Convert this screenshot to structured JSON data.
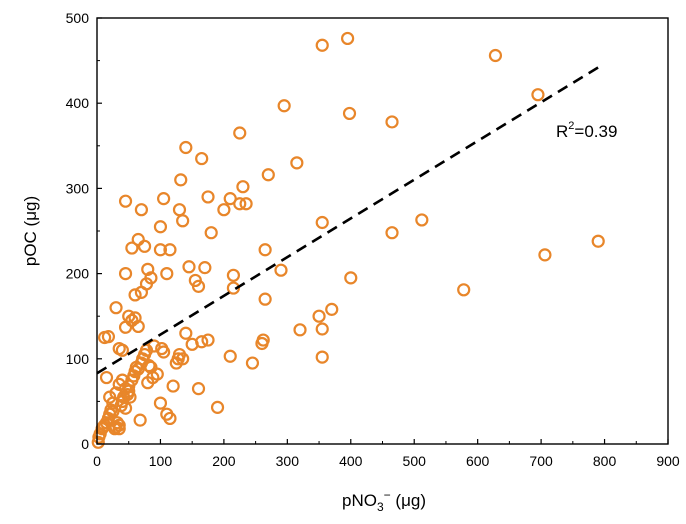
{
  "chart_data": {
    "type": "scatter",
    "title": "",
    "xlabel": "pNO3⁻ (μg)",
    "ylabel": "pOC (μg)",
    "xlim": [
      0,
      900
    ],
    "ylim": [
      0,
      500
    ],
    "xticks": [
      "0",
      "100",
      "200",
      "300",
      "400",
      "500",
      "600",
      "700",
      "800",
      "900"
    ],
    "yticks": [
      "0",
      "100",
      "200",
      "300",
      "400",
      "500"
    ],
    "grid": false,
    "marker_color": "#e8862a",
    "fit_line": {
      "x": [
        0,
        790
      ],
      "y": [
        83,
        442
      ],
      "style": "dashed",
      "color": "#000000"
    },
    "annotation": "R2=0.39",
    "points": [
      [
        2,
        2
      ],
      [
        3,
        8
      ],
      [
        5,
        12
      ],
      [
        8,
        18
      ],
      [
        10,
        20
      ],
      [
        12,
        22
      ],
      [
        15,
        25
      ],
      [
        18,
        30
      ],
      [
        20,
        35
      ],
      [
        22,
        40
      ],
      [
        25,
        38
      ],
      [
        28,
        18
      ],
      [
        30,
        20
      ],
      [
        32,
        25
      ],
      [
        35,
        18
      ],
      [
        35,
        22
      ],
      [
        38,
        45
      ],
      [
        40,
        50
      ],
      [
        42,
        55
      ],
      [
        45,
        42
      ],
      [
        48,
        58
      ],
      [
        50,
        62
      ],
      [
        52,
        55
      ],
      [
        55,
        75
      ],
      [
        58,
        80
      ],
      [
        60,
        85
      ],
      [
        62,
        90
      ],
      [
        65,
        88
      ],
      [
        68,
        28
      ],
      [
        70,
        95
      ],
      [
        72,
        100
      ],
      [
        75,
        105
      ],
      [
        78,
        110
      ],
      [
        80,
        72
      ],
      [
        82,
        92
      ],
      [
        85,
        90
      ],
      [
        88,
        78
      ],
      [
        90,
        115
      ],
      [
        95,
        82
      ],
      [
        100,
        48
      ],
      [
        102,
        112
      ],
      [
        105,
        108
      ],
      [
        110,
        35
      ],
      [
        115,
        30
      ],
      [
        120,
        68
      ],
      [
        125,
        95
      ],
      [
        128,
        100
      ],
      [
        130,
        105
      ],
      [
        135,
        100
      ],
      [
        140,
        130
      ],
      [
        15,
        78
      ],
      [
        20,
        55
      ],
      [
        25,
        48
      ],
      [
        30,
        60
      ],
      [
        35,
        70
      ],
      [
        40,
        75
      ],
      [
        45,
        65
      ],
      [
        50,
        68
      ],
      [
        12,
        125
      ],
      [
        18,
        126
      ],
      [
        30,
        160
      ],
      [
        35,
        112
      ],
      [
        40,
        110
      ],
      [
        45,
        137
      ],
      [
        50,
        150
      ],
      [
        55,
        145
      ],
      [
        60,
        148
      ],
      [
        65,
        138
      ],
      [
        60,
        175
      ],
      [
        70,
        178
      ],
      [
        45,
        200
      ],
      [
        55,
        230
      ],
      [
        65,
        240
      ],
      [
        75,
        232
      ],
      [
        80,
        205
      ],
      [
        78,
        188
      ],
      [
        85,
        195
      ],
      [
        70,
        275
      ],
      [
        45,
        285
      ],
      [
        100,
        255
      ],
      [
        105,
        288
      ],
      [
        110,
        200
      ],
      [
        115,
        228
      ],
      [
        100,
        228
      ],
      [
        130,
        275
      ],
      [
        132,
        310
      ],
      [
        135,
        262
      ],
      [
        140,
        348
      ],
      [
        145,
        208
      ],
      [
        155,
        192
      ],
      [
        160,
        185
      ],
      [
        165,
        335
      ],
      [
        170,
        207
      ],
      [
        175,
        290
      ],
      [
        180,
        248
      ],
      [
        200,
        275
      ],
      [
        210,
        288
      ],
      [
        225,
        365
      ],
      [
        230,
        302
      ],
      [
        225,
        282
      ],
      [
        235,
        282
      ],
      [
        215,
        198
      ],
      [
        215,
        183
      ],
      [
        165,
        120
      ],
      [
        175,
        122
      ],
      [
        150,
        117
      ],
      [
        160,
        65
      ],
      [
        190,
        43
      ],
      [
        210,
        103
      ],
      [
        245,
        95
      ],
      [
        260,
        118
      ],
      [
        262,
        122
      ],
      [
        265,
        170
      ],
      [
        265,
        228
      ],
      [
        270,
        316
      ],
      [
        290,
        204
      ],
      [
        295,
        397
      ],
      [
        315,
        330
      ],
      [
        320,
        134
      ],
      [
        355,
        468
      ],
      [
        355,
        260
      ],
      [
        350,
        150
      ],
      [
        355,
        135
      ],
      [
        355,
        102
      ],
      [
        370,
        158
      ],
      [
        395,
        476
      ],
      [
        398,
        388
      ],
      [
        400,
        195
      ],
      [
        465,
        378
      ],
      [
        465,
        248
      ],
      [
        512,
        263
      ],
      [
        578,
        181
      ],
      [
        628,
        456
      ],
      [
        695,
        410
      ],
      [
        706,
        222
      ],
      [
        790,
        238
      ]
    ]
  }
}
